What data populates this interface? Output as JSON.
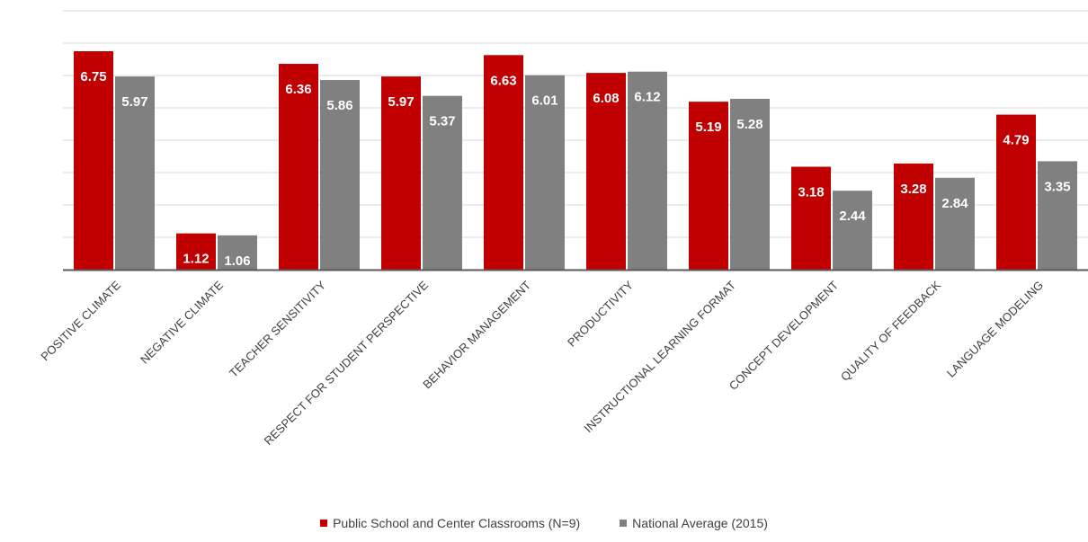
{
  "chart_data": {
    "type": "bar",
    "title": "",
    "xlabel": "",
    "ylabel": "",
    "ylim": [
      0,
      8
    ],
    "grid": true,
    "legend_position": "bottom",
    "categories": [
      "POSITIVE CLIMATE",
      "NEGATIVE CLIMATE",
      "TEACHER SENSITIVITY",
      "RESPECT FOR STUDENT PERSPECTIVE",
      "BEHAVIOR MANAGEMENT",
      "PRODUCTIVITY",
      "INSTRUCTIONAL LEARNING FORMAT",
      "CONCEPT DEVELOPMENT",
      "QUALITY OF FEEDBACK",
      "LANGUAGE MODELING"
    ],
    "series": [
      {
        "name": "Public School and Center Classrooms (N=9)",
        "color": "#c00000",
        "values": [
          6.75,
          1.12,
          6.36,
          5.97,
          6.63,
          6.08,
          5.19,
          3.18,
          3.28,
          4.79
        ]
      },
      {
        "name": "National Average (2015)",
        "color": "#808080",
        "values": [
          5.97,
          1.06,
          5.86,
          5.37,
          6.01,
          6.12,
          5.28,
          2.44,
          2.84,
          3.35
        ]
      }
    ]
  }
}
